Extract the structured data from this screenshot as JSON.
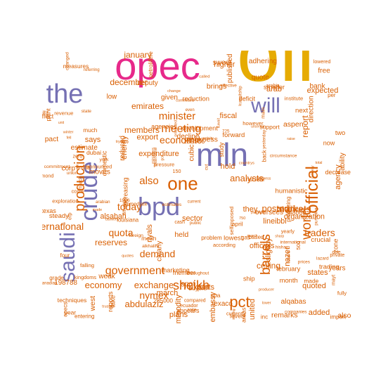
{
  "colors": {
    "tier1": "#e6ab02",
    "tier2": "#e7298a",
    "tier3": "#7570b3",
    "tier4": "#d95f02",
    "tier5": "#1b9e77"
  },
  "words": [
    {
      "text": "oil",
      "tier": 1
    },
    {
      "text": "opec",
      "tier": 2
    },
    {
      "text": "the",
      "tier": 3
    },
    {
      "text": "mln",
      "tier": 3
    },
    {
      "text": "bpd",
      "tier": 3
    },
    {
      "text": "will",
      "tier": 3
    },
    {
      "text": "crude",
      "tier": 3
    },
    {
      "text": "saudi",
      "tier": 3
    },
    {
      "text": "one",
      "tier": 4
    },
    {
      "text": "official",
      "tier": 4
    },
    {
      "text": "production",
      "tier": 4
    },
    {
      "text": "government",
      "tier": 4
    },
    {
      "text": "pct",
      "tier": 4
    },
    {
      "text": "barrels",
      "tier": 4
    },
    {
      "text": "world",
      "tier": 4
    },
    {
      "text": "sheikh",
      "tier": 4
    },
    {
      "text": "meeting",
      "tier": 4
    },
    {
      "text": "minister",
      "tier": 4
    },
    {
      "text": "markets",
      "tier": 4
    },
    {
      "text": "international",
      "tier": 4
    },
    {
      "text": "economic",
      "tier": 4
    },
    {
      "text": "also",
      "tier": 4
    },
    {
      "text": "today",
      "tier": 4
    },
    {
      "text": "quota",
      "tier": 4
    },
    {
      "text": "demand",
      "tier": 4
    },
    {
      "text": "economy",
      "tier": 4
    },
    {
      "text": "exchange",
      "tier": 4
    },
    {
      "text": "nymex",
      "tier": 4
    },
    {
      "text": "abdulaziz",
      "tier": 4
    },
    {
      "text": "posted",
      "tier": 4
    },
    {
      "text": "traders",
      "tier": 4
    },
    {
      "text": "report",
      "tier": 4
    },
    {
      "text": "analysts",
      "tier": 4
    },
    {
      "text": "reserves",
      "tier": 4
    },
    {
      "text": "exports",
      "tier": 4
    },
    {
      "text": "ceiling",
      "tier": 4
    },
    {
      "text": "december",
      "tier": 4
    },
    {
      "text": "january",
      "tier": 4
    },
    {
      "text": "says",
      "tier": 4
    },
    {
      "text": "emirates",
      "tier": 4
    },
    {
      "text": "members",
      "tier": 4
    },
    {
      "text": "expenditure",
      "tier": 4
    },
    {
      "text": "hold",
      "tier": 4
    },
    {
      "text": "agency",
      "tier": 4
    },
    {
      "text": "ability",
      "tier": 4
    },
    {
      "text": "they",
      "tier": 4
    },
    {
      "text": "march",
      "tier": 4
    },
    {
      "text": "united",
      "tier": 4
    },
    {
      "text": "nazer",
      "tier": 4
    },
    {
      "text": "plans",
      "tier": 4
    },
    {
      "text": "added",
      "tier": 4
    },
    {
      "text": "quoted",
      "tier": 4
    },
    {
      "text": "states",
      "tier": 4
    },
    {
      "text": "riyals",
      "tier": 4
    },
    {
      "text": "energy",
      "tier": 4
    },
    {
      "text": "march",
      "tier": 4
    },
    {
      "text": "arab",
      "tier": 4
    },
    {
      "text": "expected",
      "tier": 4
    },
    {
      "text": "march",
      "tier": 4
    },
    {
      "text": "weak",
      "tier": 4
    },
    {
      "text": "west",
      "tier": 4
    },
    {
      "text": "corp",
      "tier": 4
    },
    {
      "text": "month",
      "tier": 4
    },
    {
      "text": "texas",
      "tier": 4
    },
    {
      "text": "year",
      "tier": 4
    },
    {
      "text": "opecs",
      "tier": 4
    },
    {
      "text": "according",
      "tier": 4
    },
    {
      "text": "arabia",
      "tier": 4
    },
    {
      "text": "effective",
      "tier": 4
    },
    {
      "text": "countrys",
      "tier": 4
    },
    {
      "text": "saying",
      "tier": 4
    },
    {
      "text": "sector",
      "tier": 4
    },
    {
      "text": "alqabas",
      "tier": 4
    },
    {
      "text": "years",
      "tier": 4
    },
    {
      "text": "february",
      "tier": 4
    },
    {
      "text": "study",
      "tier": 4
    },
    {
      "text": "much",
      "tier": 4
    },
    {
      "text": "however",
      "tier": 4
    },
    {
      "text": "announced",
      "tier": 4
    },
    {
      "text": "commitment",
      "tier": 4
    },
    {
      "text": "yesterday",
      "tier": 4
    },
    {
      "text": "change",
      "tier": 4
    },
    {
      "text": "total",
      "tier": 4
    },
    {
      "text": "officials",
      "tier": 4
    },
    {
      "text": "bank",
      "tier": 4
    },
    {
      "text": "published",
      "tier": 4
    },
    {
      "text": "development",
      "tier": 4
    },
    {
      "text": "levels",
      "tier": 4
    },
    {
      "text": "problem",
      "tier": 4
    },
    {
      "text": "exploration",
      "tier": 4
    },
    {
      "text": "future",
      "tier": 4
    },
    {
      "text": "state",
      "tier": 4
    },
    {
      "text": "denied",
      "tier": 4
    },
    {
      "text": "producer",
      "tier": 4
    },
    {
      "text": "sharp",
      "tier": 4
    },
    {
      "text": "slightly",
      "tier": 4
    },
    {
      "text": "free",
      "tier": 4
    },
    {
      "text": "next",
      "tier": 4
    },
    {
      "text": "now",
      "tier": 4
    },
    {
      "text": "buyers",
      "tier": 4
    },
    {
      "text": "back",
      "tier": 4
    },
    {
      "text": "revenue",
      "tier": 4
    },
    {
      "text": "lowered",
      "tier": 4
    },
    {
      "text": "companies",
      "tier": 4
    },
    {
      "text": "current",
      "tier": 4
    },
    {
      "text": "refinery",
      "tier": 4
    },
    {
      "text": "export",
      "tier": 4
    },
    {
      "text": "brings",
      "tier": 4
    },
    {
      "text": "quote",
      "tier": 4
    },
    {
      "text": "trading",
      "tier": 4
    },
    {
      "text": "domestic",
      "tier": 4
    },
    {
      "text": "april",
      "tier": 4
    },
    {
      "text": "per",
      "tier": 4
    },
    {
      "text": "due",
      "tier": 4
    },
    {
      "text": "compared",
      "tier": 4
    },
    {
      "text": "cut",
      "tier": 4
    },
    {
      "text": "called",
      "tier": 4
    },
    {
      "text": "fell",
      "tier": 4
    },
    {
      "text": "higher",
      "tier": 4
    },
    {
      "text": "also",
      "tier": 4
    },
    {
      "text": "reduced",
      "tier": 4
    },
    {
      "text": "smaller",
      "tier": 4
    },
    {
      "text": "decrease",
      "tier": 4
    },
    {
      "text": "measures",
      "tier": 4
    },
    {
      "text": "day",
      "tier": 4
    },
    {
      "text": "main",
      "tier": 4
    },
    {
      "text": "foreign",
      "tier": 4
    },
    {
      "text": "hisham",
      "tier": 4
    },
    {
      "text": "ali",
      "tier": 4
    },
    {
      "text": "address",
      "tier": 4
    },
    {
      "text": "embassy",
      "tier": 4
    },
    {
      "text": "moves",
      "tier": 4
    },
    {
      "text": "low",
      "tier": 4
    },
    {
      "text": "two",
      "tier": 4
    },
    {
      "text": "spa",
      "tier": 4
    },
    {
      "text": "producing",
      "tier": 4
    },
    {
      "text": "falling",
      "tier": 4
    },
    {
      "text": "yearly",
      "tier": 4
    },
    {
      "text": "international",
      "tier": 4
    },
    {
      "text": "arabian",
      "tier": 4
    },
    {
      "text": "protected",
      "tier": 4
    },
    {
      "text": "bankers",
      "tier": 4
    },
    {
      "text": "alsabah",
      "tier": 4
    },
    {
      "text": "estimate",
      "tier": 4
    },
    {
      "text": "crucial",
      "tier": 4
    },
    {
      "text": "increasing",
      "tier": 4
    },
    {
      "text": "dubai",
      "tier": 4
    },
    {
      "text": "four",
      "tier": 4
    },
    {
      "text": "pressure",
      "tier": 4
    },
    {
      "text": "ecuador",
      "tier": 4
    },
    {
      "text": "pumping",
      "tier": 4
    },
    {
      "text": "canadian",
      "tier": 4
    },
    {
      "text": "winter",
      "tier": 4
    },
    {
      "text": "uncertain",
      "tier": 4
    },
    {
      "text": "weakness",
      "tier": 4
    },
    {
      "text": "direction",
      "tier": 4
    },
    {
      "text": "steady",
      "tier": 4
    },
    {
      "text": "appears",
      "tier": 4
    },
    {
      "text": "support",
      "tier": 4
    },
    {
      "text": "gas",
      "tier": 4
    },
    {
      "text": "efp",
      "tier": 4
    },
    {
      "text": "cash",
      "tier": 4
    },
    {
      "text": "lazard",
      "tier": 4
    },
    {
      "text": "even",
      "tier": 4
    },
    {
      "text": "made",
      "tier": 4
    },
    {
      "text": "commodity",
      "tier": 4
    },
    {
      "text": "adhering",
      "tier": 4
    },
    {
      "text": "oversees",
      "tier": 4
    },
    {
      "text": "reduction",
      "tier": 4
    },
    {
      "text": "deficit",
      "tier": 4
    },
    {
      "text": "plant",
      "tier": 4
    },
    {
      "text": "louisiana",
      "tier": 4
    },
    {
      "text": "kingdoms",
      "tier": 4
    },
    {
      "text": "york",
      "tier": 4
    },
    {
      "text": "public",
      "tier": 4
    },
    {
      "text": "ministers",
      "tier": 4
    },
    {
      "text": "raise",
      "tier": 4
    },
    {
      "text": "fiscal",
      "tier": 4
    },
    {
      "text": "pact",
      "tier": 4
    },
    {
      "text": "deputy",
      "tier": 4
    },
    {
      "text": "zone",
      "tier": 4
    },
    {
      "text": "member",
      "tier": 4
    },
    {
      "text": "nuclear",
      "tier": 4
    },
    {
      "text": "institute",
      "tier": 4
    },
    {
      "text": "diamond",
      "tier": 4
    },
    {
      "text": "changed",
      "tier": 4
    },
    {
      "text": "union",
      "tier": 4
    },
    {
      "text": "quotes",
      "tier": 4
    },
    {
      "text": "activity",
      "tier": 4
    },
    {
      "text": "organization",
      "tier": 4
    },
    {
      "text": "clearly",
      "tier": 4
    },
    {
      "text": "humanistic",
      "tier": 4
    },
    {
      "text": "marketing",
      "tier": 4
    },
    {
      "text": "techniques",
      "tier": 4
    },
    {
      "text": "import",
      "tier": 4
    },
    {
      "text": "selfimposed",
      "tier": 4
    },
    {
      "text": "immediate",
      "tier": 4
    },
    {
      "text": "circumstance",
      "tier": 4
    },
    {
      "text": "referring",
      "tier": 4
    },
    {
      "text": "committed",
      "tier": 4
    },
    {
      "text": "kuwait",
      "tier": 4
    },
    {
      "text": "aspen",
      "tier": 4
    },
    {
      "text": "decline",
      "tier": 4
    },
    {
      "text": "forward",
      "tier": 4
    },
    {
      "text": "limits",
      "tier": 4
    },
    {
      "text": "petrolifere",
      "tier": 4
    },
    {
      "text": "inc",
      "tier": 4
    },
    {
      "text": "come",
      "tier": 4
    },
    {
      "text": "private",
      "tier": 4
    },
    {
      "text": "estimates",
      "tier": 4
    },
    {
      "text": "difficulties",
      "tier": 4
    },
    {
      "text": "trusted",
      "tier": 4
    },
    {
      "text": "studies",
      "tier": 4
    },
    {
      "text": "remarks",
      "tier": 4
    },
    {
      "text": "texaco",
      "tier": 4
    },
    {
      "text": "reports",
      "tier": 4
    },
    {
      "text": "effect",
      "tier": 4
    },
    {
      "text": "made",
      "tier": 4
    },
    {
      "text": "entering",
      "tier": 4
    },
    {
      "text": "currently",
      "tier": 4
    },
    {
      "text": "interview",
      "tier": 4
    },
    {
      "text": "throughout",
      "tier": 4
    },
    {
      "text": "planned",
      "tier": 4
    },
    {
      "text": "lower",
      "tier": 4
    },
    {
      "text": "spot",
      "tier": 4
    },
    {
      "text": "cubic",
      "tier": 4
    },
    {
      "text": "198788",
      "tier": 4
    },
    {
      "text": "186586",
      "tier": 4
    },
    {
      "text": "948000",
      "tier": 4
    },
    {
      "text": "285000",
      "tier": 4
    },
    {
      "text": "500",
      "tier": 4
    },
    {
      "text": "150",
      "tier": 4
    },
    {
      "text": "1986",
      "tier": 4
    },
    {
      "text": "725",
      "tier": 4
    },
    {
      "text": "750",
      "tier": 4
    },
    {
      "text": "gcc",
      "tier": 4
    },
    {
      "text": "lineibbl",
      "tier": 4
    },
    {
      "text": "sweet",
      "tier": 4
    },
    {
      "text": "lowest",
      "tier": 4
    },
    {
      "text": "agencies",
      "tier": 4
    },
    {
      "text": "areas",
      "tier": 4
    },
    {
      "text": "based",
      "tier": 4
    },
    {
      "text": "rate",
      "tier": 4
    },
    {
      "text": "zero",
      "tier": 4
    },
    {
      "text": "alkhalifa",
      "tier": 4
    },
    {
      "text": "kuwaitship",
      "tier": 4
    },
    {
      "text": "trying",
      "tier": 4
    },
    {
      "text": "unit",
      "tier": 4
    },
    {
      "text": "held",
      "tier": 4
    },
    {
      "text": "given",
      "tier": 4
    },
    {
      "text": "take",
      "tier": 4
    },
    {
      "text": "ship",
      "tier": 4
    },
    {
      "text": "mean",
      "tier": 4
    },
    {
      "text": "grade",
      "tier": 4
    },
    {
      "text": "fully",
      "tier": 4
    },
    {
      "text": "mayt",
      "tier": 4
    },
    {
      "text": "prices",
      "tier": 4
    }
  ]
}
